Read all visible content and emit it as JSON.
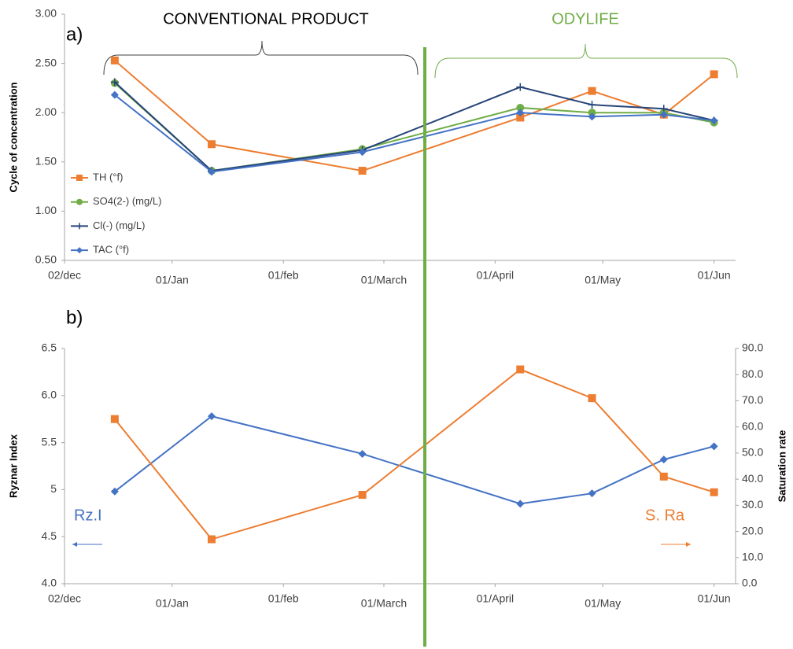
{
  "chart_data": [
    {
      "type": "line",
      "panel_label": "a)",
      "annotations": [
        "CONVENTIONAL PRODUCT",
        "ODYLIFE"
      ],
      "y_label": "Cycle of concentration",
      "legend": "left",
      "x": [
        14,
        41,
        83,
        127,
        147,
        167,
        181
      ],
      "xlim": [
        0,
        187
      ],
      "xticks": [
        {
          "value": 0,
          "label": "02/dec"
        },
        {
          "value": 30,
          "label": "01/Jan"
        },
        {
          "value": 61,
          "label": "01/feb"
        },
        {
          "value": 89,
          "label": "01/March"
        },
        {
          "value": 120,
          "label": "01/April"
        },
        {
          "value": 150,
          "label": "01/May"
        },
        {
          "value": 181,
          "label": "01/Jun"
        }
      ],
      "ylim": [
        0.5,
        3.0
      ],
      "yticks": [
        {
          "value": 0.5,
          "label": "0.50"
        },
        {
          "value": 1.0,
          "label": "1.00"
        },
        {
          "value": 1.5,
          "label": "1.50"
        },
        {
          "value": 2.0,
          "label": "2.00"
        },
        {
          "value": 2.5,
          "label": "2.50"
        },
        {
          "value": 3.0,
          "label": "3.00"
        }
      ],
      "series": [
        {
          "name": "TH (°f)",
          "color": "#ed7d31",
          "marker": "square",
          "values": [
            2.53,
            1.68,
            1.41,
            1.95,
            2.22,
            1.98,
            2.39
          ]
        },
        {
          "name": "SO4(2-) (mg/L)",
          "color": "#70ad47",
          "marker": "circle",
          "values": [
            2.3,
            1.41,
            1.63,
            2.05,
            2.0,
            2.0,
            1.9
          ]
        },
        {
          "name": "Cl(-) (mg/L)",
          "color": "#264478",
          "marker": "plus",
          "values": [
            2.31,
            1.41,
            1.62,
            2.26,
            2.08,
            2.04,
            1.92
          ]
        },
        {
          "name": "TAC (°f)",
          "color": "#4472c4",
          "marker": "diamond",
          "values": [
            2.18,
            1.4,
            1.6,
            2.0,
            1.96,
            1.98,
            1.92
          ]
        }
      ]
    },
    {
      "type": "line",
      "panel_label": "b)",
      "y_label": "Ryznar Index",
      "y2_label": "Saturation rate",
      "x": [
        14,
        41,
        83,
        127,
        147,
        167,
        181
      ],
      "xlim": [
        0,
        187
      ],
      "xticks": [
        {
          "value": 0,
          "label": "02/dec"
        },
        {
          "value": 30,
          "label": "01/Jan"
        },
        {
          "value": 61,
          "label": "01/feb"
        },
        {
          "value": 89,
          "label": "01/March"
        },
        {
          "value": 120,
          "label": "01/April"
        },
        {
          "value": 150,
          "label": "01/May"
        },
        {
          "value": 181,
          "label": "01/Jun"
        }
      ],
      "ylim": [
        4.0,
        6.5
      ],
      "yticks": [
        {
          "value": 4.0,
          "label": "4.0"
        },
        4.5,
        5,
        5.5,
        {
          "value": 6.0,
          "label": "6.0"
        },
        6.5
      ],
      "y2lim": [
        0,
        90
      ],
      "y2ticks": [
        {
          "value": 0,
          "label": "0.0"
        },
        {
          "value": 10,
          "label": "10.0"
        },
        {
          "value": 20,
          "label": "20.0"
        },
        {
          "value": 30,
          "label": "30.0"
        },
        {
          "value": 40,
          "label": "40.0"
        },
        {
          "value": 50,
          "label": "50.0"
        },
        {
          "value": 60,
          "label": "60.0"
        },
        {
          "value": 70,
          "label": "70.0"
        },
        {
          "value": 80,
          "label": "80.0"
        },
        {
          "value": 90,
          "label": "90.0"
        }
      ],
      "series": [
        {
          "name": "Rz.I",
          "color": "#4472c4",
          "marker": "diamond",
          "values": [
            4.98,
            5.78,
            5.38,
            4.85,
            4.96,
            5.32,
            5.46
          ]
        },
        {
          "name": "S. Ra",
          "color": "#ed7d31",
          "marker": "square",
          "axis": "y2",
          "values": [
            63,
            17,
            34,
            82,
            71,
            41,
            35
          ]
        }
      ]
    }
  ]
}
